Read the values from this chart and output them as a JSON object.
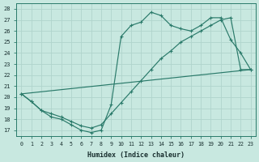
{
  "xlabel": "Humidex (Indice chaleur)",
  "bg_color": "#c8e8e0",
  "grid_color": "#b0d4cc",
  "line_color": "#2a7a6a",
  "line1": [
    20.3,
    19.6,
    18.8,
    18.2,
    18.0,
    17.5,
    17.0,
    16.8,
    17.0,
    19.3,
    25.5,
    26.5,
    26.8,
    27.7,
    27.4,
    26.5,
    26.2,
    26.0,
    26.5,
    27.2,
    27.2,
    25.2,
    24.0,
    22.5
  ],
  "line2": [
    20.3,
    19.6,
    18.8,
    18.5,
    18.2,
    17.8,
    17.4,
    17.2,
    17.5,
    18.5,
    19.5,
    20.5,
    21.5,
    22.5,
    23.5,
    24.2,
    25.0,
    25.5,
    26.0,
    26.5,
    27.0,
    27.2,
    22.5,
    22.5
  ],
  "line3_x": [
    0,
    23
  ],
  "line3_y": [
    20.3,
    22.5
  ],
  "x_values": [
    0,
    1,
    2,
    3,
    4,
    5,
    6,
    7,
    8,
    9,
    10,
    11,
    12,
    13,
    14,
    15,
    16,
    17,
    18,
    19,
    20,
    21,
    22,
    23
  ],
  "ylim": [
    16.5,
    28.5
  ],
  "xlim": [
    -0.5,
    23.5
  ],
  "yticks": [
    17,
    18,
    19,
    20,
    21,
    22,
    23,
    24,
    25,
    26,
    27,
    28
  ],
  "xticks": [
    0,
    1,
    2,
    3,
    4,
    5,
    6,
    7,
    8,
    9,
    10,
    11,
    12,
    13,
    14,
    15,
    16,
    17,
    18,
    19,
    20,
    21,
    22,
    23
  ]
}
